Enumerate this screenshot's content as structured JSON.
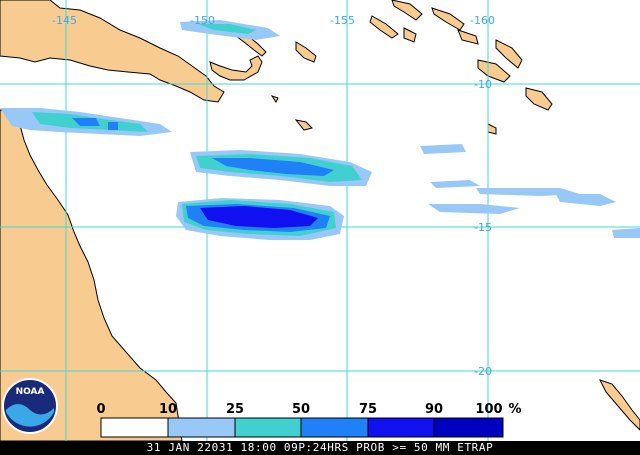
{
  "map": {
    "longitude_labels": [
      "145",
      "150",
      "155",
      "160"
    ],
    "latitude_labels": [
      "10",
      "15",
      "20"
    ],
    "colors": {
      "land": "#f8cc90",
      "ocean": "#ffffff",
      "grid": "#40d8d8",
      "coast": "#000000"
    }
  },
  "legend": {
    "ticks": [
      "0",
      "10",
      "25",
      "50",
      "75",
      "90",
      "100"
    ],
    "unit": "%",
    "colors": [
      "#ffffff",
      "#98c8f8",
      "#40d0d0",
      "#2080f8",
      "#1010f0",
      "#0000c0"
    ]
  },
  "logo": {
    "text": "NOAA"
  },
  "footer": {
    "caption": "31 JAN 22031 18:00 09P:24HRS PROB >= 50 MM ETRAP"
  }
}
